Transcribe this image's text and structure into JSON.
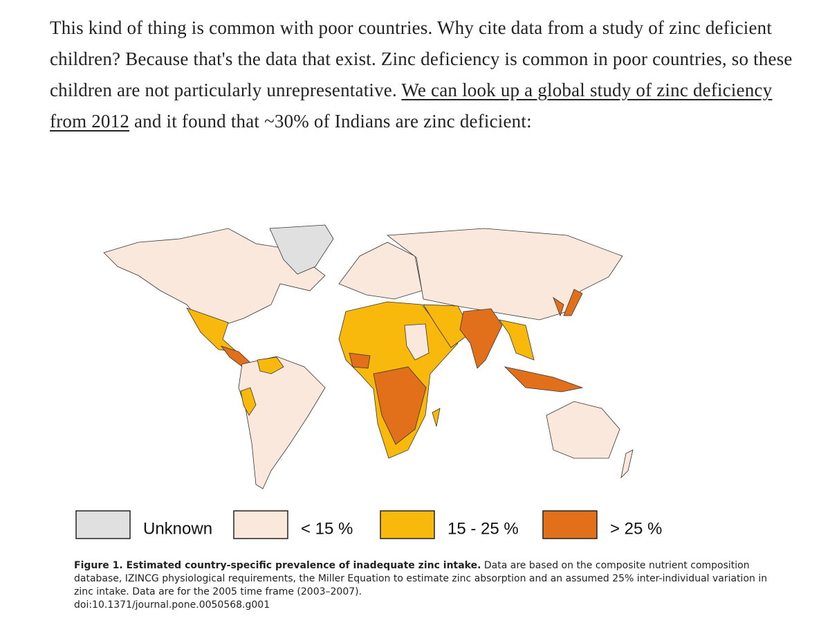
{
  "paragraph": {
    "text_before": "This kind of thing is common with poor countries. Why cite data from a study of zinc deficient children? Because that's the data that exist. Zinc deficiency is common in poor countries, so these children are not particularly unrepresentative.",
    "link": "We can look up a global study of zinc deficiency from 2012",
    "text_after": "and it found that ~30% of Indians are zinc deficient:"
  },
  "figure": {
    "legend": [
      {
        "label": "Unknown",
        "color": "#e0e0e0"
      },
      {
        "label": "< 15 %",
        "color": "#fbe8dc"
      },
      {
        "label": "15 - 25 %",
        "color": "#f9b80c"
      },
      {
        "label": "> 25 %",
        "color": "#e2701a"
      }
    ],
    "caption": {
      "title": "Figure 1. Estimated country-specific prevalence of inadequate zinc intake.",
      "body": "Data are based on the composite nutrient composition database, IZINCG physiological requirements, the Miller Equation to estimate zinc absorption and an assumed 25% inter-individual variation in zinc intake. Data are for the 2005 time frame (2003–2007)."
    },
    "doi": "doi:10.1371/journal.pone.0050568.g001"
  }
}
